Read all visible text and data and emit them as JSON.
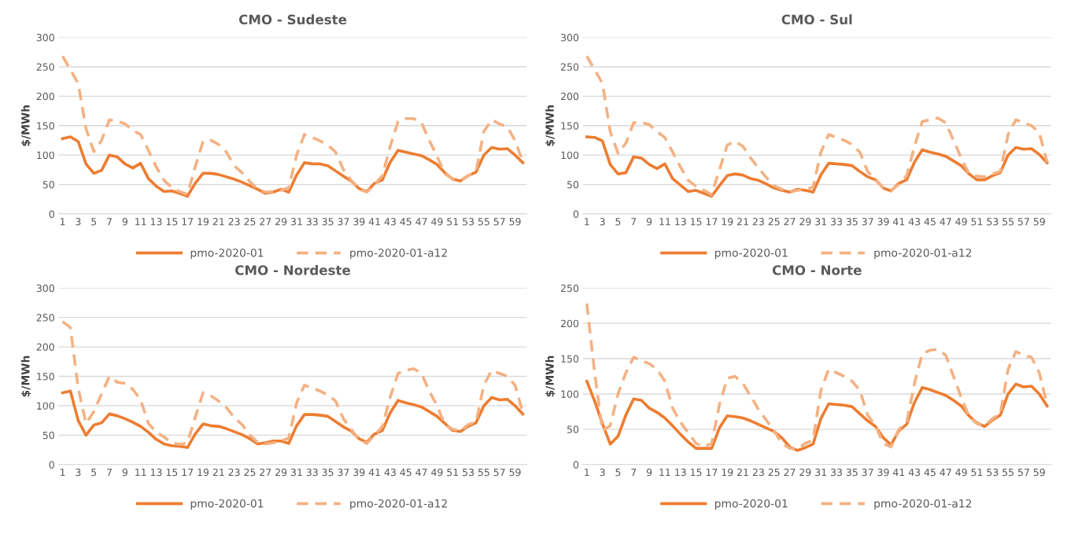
{
  "chart_data": [
    {
      "type": "line",
      "title": "CMO - Sudeste",
      "ylabel": "$/MWh",
      "categories": [
        "1",
        null,
        "3",
        null,
        "5",
        null,
        "7",
        null,
        "9",
        null,
        "11",
        null,
        "13",
        null,
        "15",
        null,
        "17",
        null,
        "19",
        null,
        "21",
        null,
        "23",
        null,
        "25",
        null,
        "27",
        null,
        "29",
        null,
        "31",
        null,
        "33",
        null,
        "35",
        null,
        "37",
        null,
        "39",
        null,
        "41",
        null,
        "43",
        null,
        "45",
        null,
        "47",
        null,
        "49",
        null,
        "51",
        null,
        "53",
        null,
        "55",
        null,
        "57",
        null,
        "59",
        null
      ],
      "ylim": [
        0,
        300
      ],
      "yticks": [
        0,
        50,
        100,
        150,
        200,
        250,
        300
      ],
      "grid": "y",
      "legend": "bottom",
      "marker": "none",
      "series": [
        {
          "name": "pmo-2020-01",
          "color": "#ed7d31",
          "line_style": "solid",
          "values": [
            128,
            131,
            123,
            85,
            69,
            74,
            100,
            97,
            85,
            78,
            86,
            60,
            47,
            38,
            39,
            35,
            30,
            52,
            69,
            69,
            67,
            63,
            59,
            54,
            48,
            42,
            35,
            37,
            42,
            37,
            66,
            87,
            85,
            85,
            82,
            73,
            64,
            56,
            43,
            38,
            52,
            58,
            88,
            108,
            105,
            102,
            99,
            92,
            84,
            70,
            59,
            56,
            65,
            71,
            100,
            113,
            110,
            111,
            100,
            87
          ]
        },
        {
          "name": "pmo-2020-01-a12",
          "color": "#f4b183",
          "line_style": "dashed",
          "values": [
            268,
            245,
            222,
            145,
            106,
            125,
            160,
            158,
            153,
            142,
            135,
            108,
            80,
            57,
            45,
            38,
            33,
            80,
            123,
            125,
            118,
            105,
            82,
            70,
            55,
            42,
            37,
            38,
            40,
            45,
            100,
            135,
            130,
            124,
            117,
            105,
            75,
            57,
            42,
            37,
            50,
            65,
            115,
            157,
            162,
            162,
            155,
            125,
            98,
            68,
            60,
            57,
            65,
            72,
            140,
            160,
            153,
            148,
            125,
            88
          ]
        }
      ]
    },
    {
      "type": "line",
      "title": "CMO - Sul",
      "ylabel": "$/MWh",
      "categories": [
        "1",
        null,
        "3",
        null,
        "5",
        null,
        "7",
        null,
        "9",
        null,
        "11",
        null,
        "13",
        null,
        "15",
        null,
        "17",
        null,
        "19",
        null,
        "21",
        null,
        "23",
        null,
        "25",
        null,
        "27",
        null,
        "29",
        null,
        "31",
        null,
        "33",
        null,
        "35",
        null,
        "37",
        null,
        "39",
        null,
        "41",
        null,
        "43",
        null,
        "45",
        null,
        "47",
        null,
        "49",
        null,
        "51",
        null,
        "53",
        null,
        "55",
        null,
        "57",
        null,
        "59",
        null
      ],
      "ylim": [
        0,
        300
      ],
      "yticks": [
        0,
        50,
        100,
        150,
        200,
        250,
        300
      ],
      "grid": "y",
      "legend": "bottom",
      "marker": "none",
      "series": [
        {
          "name": "pmo-2020-01",
          "color": "#ed7d31",
          "line_style": "solid",
          "values": [
            131,
            130,
            124,
            84,
            68,
            70,
            97,
            95,
            84,
            77,
            85,
            60,
            49,
            38,
            40,
            35,
            30,
            48,
            65,
            68,
            66,
            60,
            57,
            51,
            44,
            40,
            37,
            42,
            40,
            37,
            66,
            86,
            85,
            84,
            82,
            72,
            63,
            58,
            44,
            39,
            52,
            58,
            88,
            109,
            105,
            102,
            98,
            90,
            82,
            68,
            58,
            58,
            65,
            70,
            100,
            113,
            110,
            111,
            101,
            87
          ]
        },
        {
          "name": "pmo-2020-01-a12",
          "color": "#f4b183",
          "line_style": "dashed",
          "values": [
            268,
            245,
            222,
            140,
            103,
            120,
            155,
            155,
            152,
            140,
            130,
            105,
            80,
            57,
            47,
            40,
            33,
            75,
            117,
            123,
            115,
            95,
            78,
            62,
            48,
            42,
            37,
            40,
            42,
            45,
            105,
            135,
            130,
            125,
            118,
            105,
            72,
            58,
            44,
            40,
            50,
            65,
            115,
            157,
            160,
            163,
            155,
            125,
            95,
            68,
            64,
            63,
            68,
            72,
            135,
            160,
            155,
            150,
            138,
            88
          ]
        }
      ]
    },
    {
      "type": "line",
      "title": "CMO - Nordeste",
      "ylabel": "$/MWh",
      "categories": [
        "1",
        null,
        "3",
        null,
        "5",
        null,
        "7",
        null,
        "9",
        null,
        "11",
        null,
        "13",
        null,
        "15",
        null,
        "17",
        null,
        "19",
        null,
        "21",
        null,
        "23",
        null,
        "25",
        null,
        "27",
        null,
        "29",
        null,
        "31",
        null,
        "33",
        null,
        "35",
        null,
        "37",
        null,
        "39",
        null,
        "41",
        null,
        "43",
        null,
        "45",
        null,
        "47",
        null,
        "49",
        null,
        "51",
        null,
        "53",
        null,
        "55",
        null,
        "57",
        null,
        "59",
        null
      ],
      "ylim": [
        0,
        300
      ],
      "yticks": [
        0,
        50,
        100,
        150,
        200,
        250,
        300
      ],
      "grid": "y",
      "legend": "bottom",
      "marker": "none",
      "series": [
        {
          "name": "pmo-2020-01",
          "color": "#ed7d31",
          "line_style": "solid",
          "values": [
            122,
            125,
            75,
            50,
            67,
            71,
            86,
            83,
            78,
            72,
            65,
            55,
            43,
            35,
            32,
            31,
            29,
            52,
            69,
            66,
            65,
            61,
            56,
            51,
            44,
            35,
            37,
            40,
            40,
            36,
            66,
            85,
            85,
            84,
            82,
            73,
            64,
            57,
            44,
            38,
            52,
            58,
            88,
            109,
            105,
            102,
            98,
            90,
            82,
            70,
            58,
            56,
            65,
            71,
            100,
            114,
            110,
            111,
            100,
            86
          ]
        },
        {
          "name": "pmo-2020-01-a12",
          "color": "#f4b183",
          "line_style": "dashed",
          "values": [
            243,
            233,
            130,
            70,
            90,
            120,
            150,
            140,
            138,
            128,
            110,
            70,
            55,
            47,
            37,
            34,
            37,
            80,
            122,
            117,
            108,
            97,
            80,
            68,
            50,
            38,
            35,
            37,
            40,
            45,
            105,
            135,
            130,
            125,
            118,
            108,
            78,
            60,
            42,
            36,
            50,
            65,
            115,
            155,
            160,
            163,
            155,
            125,
            100,
            68,
            60,
            57,
            68,
            72,
            135,
            160,
            155,
            150,
            135,
            88
          ]
        }
      ]
    },
    {
      "type": "line",
      "title": "CMO - Norte",
      "ylabel": "$/MWh",
      "categories": [
        "1",
        null,
        "3",
        null,
        "5",
        null,
        "7",
        null,
        "9",
        null,
        "11",
        null,
        "13",
        null,
        "15",
        null,
        "17",
        null,
        "19",
        null,
        "21",
        null,
        "23",
        null,
        "25",
        null,
        "27",
        null,
        "29",
        null,
        "31",
        null,
        "33",
        null,
        "35",
        null,
        "37",
        null,
        "39",
        null,
        "41",
        null,
        "43",
        null,
        "45",
        null,
        "47",
        null,
        "49",
        null,
        "51",
        null,
        "53",
        null,
        "55",
        null,
        "57",
        null,
        "59",
        null
      ],
      "ylim": [
        0,
        250
      ],
      "yticks": [
        0,
        50,
        100,
        150,
        200,
        250
      ],
      "grid": "y",
      "legend": "bottom",
      "marker": "none",
      "series": [
        {
          "name": "pmo-2020-01",
          "color": "#ed7d31",
          "line_style": "solid",
          "values": [
            118,
            90,
            58,
            29,
            40,
            70,
            93,
            91,
            80,
            74,
            66,
            55,
            43,
            32,
            23,
            23,
            23,
            52,
            69,
            68,
            66,
            62,
            57,
            52,
            47,
            38,
            25,
            20,
            24,
            29,
            65,
            86,
            85,
            84,
            82,
            72,
            62,
            54,
            38,
            28,
            48,
            57,
            88,
            109,
            106,
            102,
            98,
            91,
            83,
            69,
            59,
            54,
            63,
            70,
            100,
            114,
            110,
            111,
            100,
            83
          ]
        },
        {
          "name": "pmo-2020-01-a12",
          "color": "#f4b183",
          "line_style": "dashed",
          "values": [
            228,
            130,
            48,
            55,
            100,
            130,
            152,
            147,
            143,
            135,
            118,
            80,
            60,
            45,
            30,
            25,
            30,
            85,
            122,
            125,
            115,
            97,
            78,
            63,
            48,
            30,
            23,
            22,
            30,
            35,
            105,
            135,
            130,
            125,
            118,
            105,
            70,
            55,
            30,
            25,
            50,
            60,
            115,
            157,
            162,
            163,
            155,
            125,
            95,
            68,
            58,
            55,
            65,
            72,
            135,
            160,
            155,
            152,
            130,
            85
          ]
        }
      ]
    }
  ]
}
